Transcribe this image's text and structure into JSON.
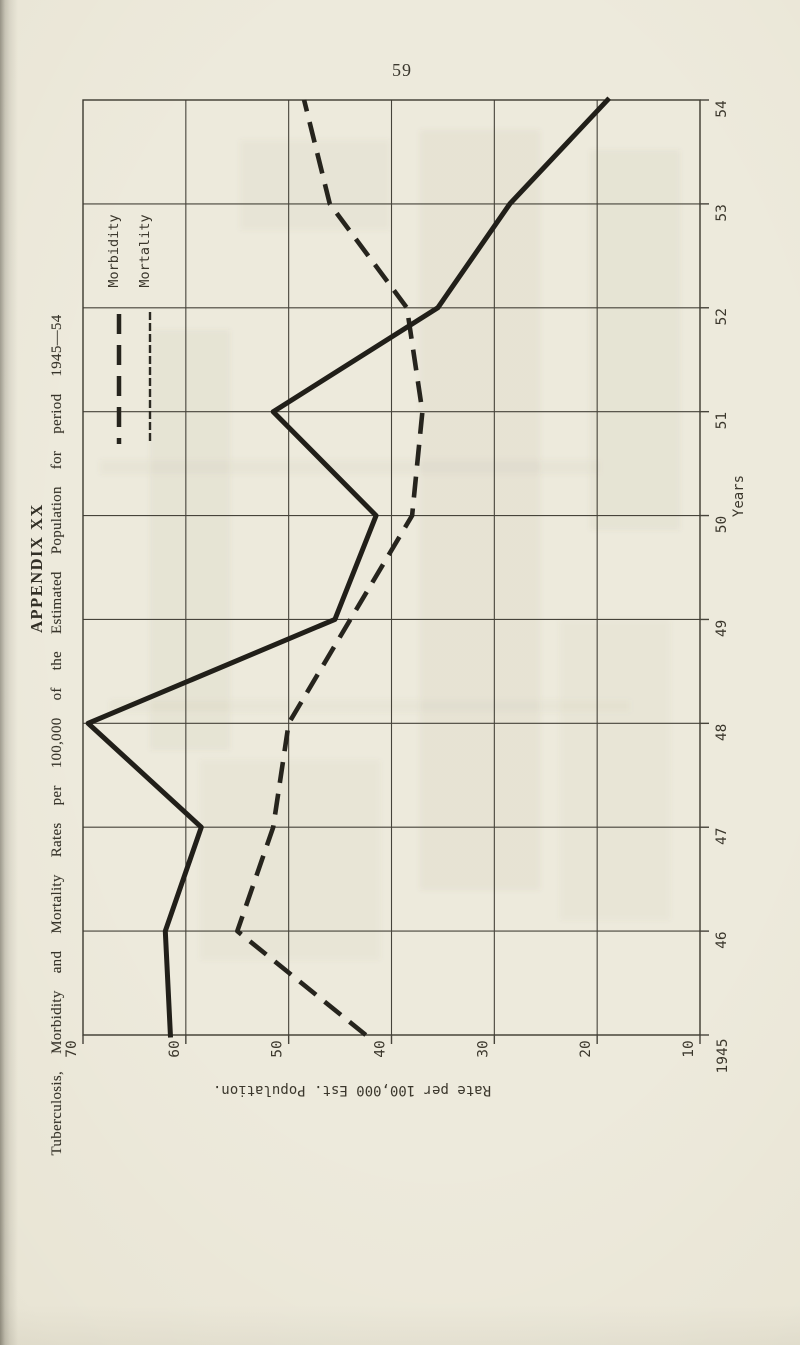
{
  "page": {
    "number": "59"
  },
  "margin_text": {
    "appendix_heading": "APPENDIX XX",
    "caption": "Tuberculosis, Morbidity and Mortality Rates per 100,000 of the Estimated Population for period 1945—54"
  },
  "chart_data": {
    "type": "line",
    "title": "Tuberculosis, Morbidity and Mortality Rates per 100,000 of the Estimated Population for period 1945—54",
    "orientation": "chart is printed rotated 90 degrees counter-clockwise on the portrait page; years run up the right edge, rate values run right-to-left along the bottom edge",
    "x": [
      1945,
      1946,
      1947,
      1948,
      1949,
      1950,
      1951,
      1952,
      1953,
      1954
    ],
    "x_tick_labels": [
      "1945",
      "46",
      "47",
      "48",
      "49",
      "50",
      "51",
      "52",
      "53",
      "54"
    ],
    "xlabel": "Years",
    "ylabel": "Rate per 100,000 Est. Population.",
    "ylim": [
      10,
      70
    ],
    "y_ticks": [
      70,
      60,
      50,
      40,
      30,
      20,
      10
    ],
    "grid": true,
    "legend_position": "top-right of plot (in readable orientation)",
    "series": [
      {
        "name": "Morbidity",
        "style": "dashed",
        "values": [
          42.5,
          55,
          51.5,
          50,
          44,
          38,
          37,
          38.5,
          46,
          48.5
        ]
      },
      {
        "name": "Mortality",
        "style": "solid",
        "values": [
          61.5,
          62,
          58.5,
          69.5,
          45.5,
          41.5,
          51.5,
          35.5,
          28.5,
          19
        ]
      }
    ]
  }
}
